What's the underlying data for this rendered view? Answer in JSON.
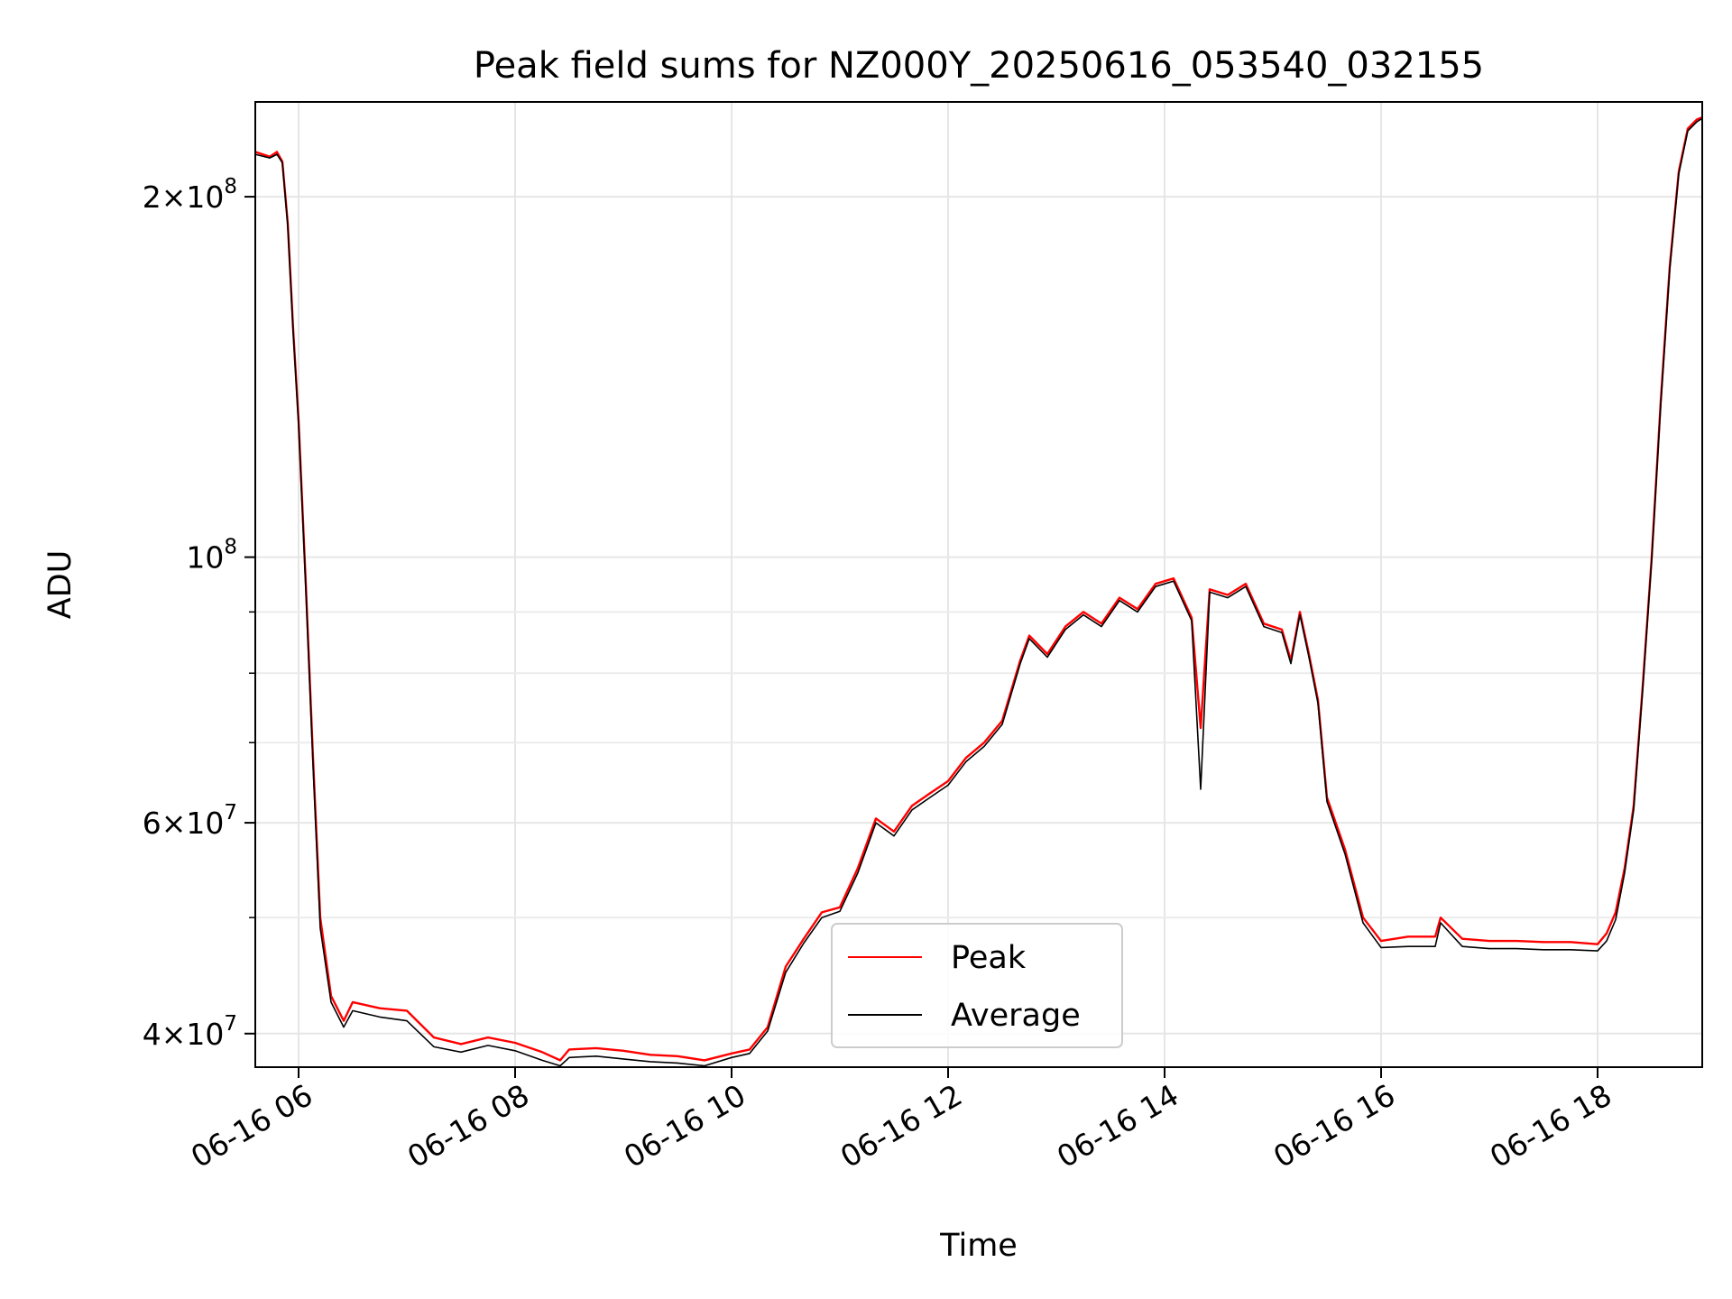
{
  "chart_data": {
    "type": "line",
    "title": "Peak field sums for NZ000Y_20250616_053540_032155",
    "xlabel": "Time",
    "ylabel": "ADU",
    "y_scale": "log",
    "ylim": [
      37500000,
      240000000
    ],
    "xlim": [
      "2025-06-16 05:36",
      "2025-06-16 18:58"
    ],
    "grid": true,
    "legend_position": "lower-center",
    "x_ticks": [
      {
        "value": "2025-06-16 06:00",
        "label": "06-16 06"
      },
      {
        "value": "2025-06-16 08:00",
        "label": "06-16 08"
      },
      {
        "value": "2025-06-16 10:00",
        "label": "06-16 10"
      },
      {
        "value": "2025-06-16 12:00",
        "label": "06-16 12"
      },
      {
        "value": "2025-06-16 14:00",
        "label": "06-16 14"
      },
      {
        "value": "2025-06-16 16:00",
        "label": "06-16 16"
      },
      {
        "value": "2025-06-16 18:00",
        "label": "06-16 18"
      }
    ],
    "y_ticks": [
      {
        "value": 40000000,
        "mantissa": "4",
        "exponent": "7"
      },
      {
        "value": 60000000,
        "mantissa": "6",
        "exponent": "7"
      },
      {
        "value": 100000000,
        "mantissa": "",
        "exponent": "8"
      },
      {
        "value": 200000000,
        "mantissa": "2",
        "exponent": "8"
      }
    ],
    "y_minor_ticks": [
      50000000,
      70000000,
      80000000,
      90000000
    ],
    "series": [
      {
        "name": "Peak",
        "color": "#ff0000",
        "x": [
          "2025-06-16 05:36",
          "2025-06-16 05:44",
          "2025-06-16 05:48",
          "2025-06-16 05:51",
          "2025-06-16 05:54",
          "2025-06-16 05:57",
          "2025-06-16 06:00",
          "2025-06-16 06:04",
          "2025-06-16 06:08",
          "2025-06-16 06:12",
          "2025-06-16 06:18",
          "2025-06-16 06:25",
          "2025-06-16 06:30",
          "2025-06-16 06:45",
          "2025-06-16 07:00",
          "2025-06-16 07:15",
          "2025-06-16 07:30",
          "2025-06-16 07:45",
          "2025-06-16 08:00",
          "2025-06-16 08:15",
          "2025-06-16 08:25",
          "2025-06-16 08:30",
          "2025-06-16 08:45",
          "2025-06-16 09:00",
          "2025-06-16 09:15",
          "2025-06-16 09:30",
          "2025-06-16 09:45",
          "2025-06-16 10:00",
          "2025-06-16 10:10",
          "2025-06-16 10:20",
          "2025-06-16 10:30",
          "2025-06-16 10:40",
          "2025-06-16 10:50",
          "2025-06-16 11:00",
          "2025-06-16 11:10",
          "2025-06-16 11:20",
          "2025-06-16 11:30",
          "2025-06-16 11:40",
          "2025-06-16 11:50",
          "2025-06-16 12:00",
          "2025-06-16 12:10",
          "2025-06-16 12:20",
          "2025-06-16 12:30",
          "2025-06-16 12:40",
          "2025-06-16 12:45",
          "2025-06-16 12:55",
          "2025-06-16 13:05",
          "2025-06-16 13:15",
          "2025-06-16 13:25",
          "2025-06-16 13:35",
          "2025-06-16 13:45",
          "2025-06-16 13:55",
          "2025-06-16 14:05",
          "2025-06-16 14:15",
          "2025-06-16 14:20",
          "2025-06-16 14:25",
          "2025-06-16 14:35",
          "2025-06-16 14:45",
          "2025-06-16 14:55",
          "2025-06-16 15:05",
          "2025-06-16 15:10",
          "2025-06-16 15:15",
          "2025-06-16 15:20",
          "2025-06-16 15:25",
          "2025-06-16 15:30",
          "2025-06-16 15:40",
          "2025-06-16 15:50",
          "2025-06-16 16:00",
          "2025-06-16 16:15",
          "2025-06-16 16:30",
          "2025-06-16 16:33",
          "2025-06-16 16:45",
          "2025-06-16 17:00",
          "2025-06-16 17:15",
          "2025-06-16 17:30",
          "2025-06-16 17:45",
          "2025-06-16 18:00",
          "2025-06-16 18:05",
          "2025-06-16 18:10",
          "2025-06-16 18:15",
          "2025-06-16 18:20",
          "2025-06-16 18:25",
          "2025-06-16 18:30",
          "2025-06-16 18:35",
          "2025-06-16 18:40",
          "2025-06-16 18:45",
          "2025-06-16 18:50",
          "2025-06-16 18:55",
          "2025-06-16 18:58"
        ],
        "y": [
          218000000,
          216000000,
          218000000,
          214000000,
          190000000,
          155000000,
          130000000,
          95000000,
          68000000,
          50000000,
          43000000,
          41000000,
          42500000,
          42000000,
          41800000,
          39700000,
          39200000,
          39700000,
          39300000,
          38600000,
          38000000,
          38800000,
          38900000,
          38700000,
          38400000,
          38300000,
          38000000,
          38500000,
          38800000,
          40500000,
          45500000,
          48000000,
          50500000,
          51000000,
          55000000,
          60500000,
          59000000,
          62000000,
          63500000,
          65000000,
          68000000,
          70000000,
          73000000,
          82000000,
          86000000,
          83000000,
          87500000,
          90000000,
          88000000,
          92500000,
          90500000,
          95000000,
          96000000,
          89000000,
          72000000,
          94000000,
          93000000,
          95000000,
          88000000,
          87000000,
          82000000,
          90000000,
          83000000,
          76000000,
          63000000,
          57000000,
          50000000,
          47800000,
          48200000,
          48200000,
          50000000,
          48000000,
          47800000,
          47800000,
          47700000,
          47700000,
          47500000,
          48500000,
          50500000,
          55000000,
          62000000,
          78000000,
          100000000,
          135000000,
          175000000,
          210000000,
          228000000,
          232000000,
          233000000
        ]
      },
      {
        "name": "Average",
        "color": "#000000",
        "x": [
          "2025-06-16 05:36",
          "2025-06-16 05:44",
          "2025-06-16 05:48",
          "2025-06-16 05:51",
          "2025-06-16 05:54",
          "2025-06-16 05:57",
          "2025-06-16 06:00",
          "2025-06-16 06:04",
          "2025-06-16 06:08",
          "2025-06-16 06:12",
          "2025-06-16 06:18",
          "2025-06-16 06:25",
          "2025-06-16 06:30",
          "2025-06-16 06:45",
          "2025-06-16 07:00",
          "2025-06-16 07:15",
          "2025-06-16 07:30",
          "2025-06-16 07:45",
          "2025-06-16 08:00",
          "2025-06-16 08:15",
          "2025-06-16 08:25",
          "2025-06-16 08:30",
          "2025-06-16 08:45",
          "2025-06-16 09:00",
          "2025-06-16 09:15",
          "2025-06-16 09:30",
          "2025-06-16 09:45",
          "2025-06-16 10:00",
          "2025-06-16 10:10",
          "2025-06-16 10:20",
          "2025-06-16 10:30",
          "2025-06-16 10:40",
          "2025-06-16 10:50",
          "2025-06-16 11:00",
          "2025-06-16 11:10",
          "2025-06-16 11:20",
          "2025-06-16 11:30",
          "2025-06-16 11:40",
          "2025-06-16 11:50",
          "2025-06-16 12:00",
          "2025-06-16 12:10",
          "2025-06-16 12:20",
          "2025-06-16 12:30",
          "2025-06-16 12:40",
          "2025-06-16 12:45",
          "2025-06-16 12:55",
          "2025-06-16 13:05",
          "2025-06-16 13:15",
          "2025-06-16 13:25",
          "2025-06-16 13:35",
          "2025-06-16 13:45",
          "2025-06-16 13:55",
          "2025-06-16 14:05",
          "2025-06-16 14:15",
          "2025-06-16 14:20",
          "2025-06-16 14:25",
          "2025-06-16 14:35",
          "2025-06-16 14:45",
          "2025-06-16 14:55",
          "2025-06-16 15:05",
          "2025-06-16 15:10",
          "2025-06-16 15:15",
          "2025-06-16 15:20",
          "2025-06-16 15:25",
          "2025-06-16 15:30",
          "2025-06-16 15:40",
          "2025-06-16 15:50",
          "2025-06-16 16:00",
          "2025-06-16 16:15",
          "2025-06-16 16:30",
          "2025-06-16 16:33",
          "2025-06-16 16:45",
          "2025-06-16 17:00",
          "2025-06-16 17:15",
          "2025-06-16 17:30",
          "2025-06-16 17:45",
          "2025-06-16 18:00",
          "2025-06-16 18:05",
          "2025-06-16 18:10",
          "2025-06-16 18:15",
          "2025-06-16 18:20",
          "2025-06-16 18:25",
          "2025-06-16 18:30",
          "2025-06-16 18:35",
          "2025-06-16 18:40",
          "2025-06-16 18:45",
          "2025-06-16 18:50",
          "2025-06-16 18:55",
          "2025-06-16 18:58"
        ],
        "y": [
          217000000,
          215500000,
          217000000,
          213500000,
          189000000,
          154000000,
          129000000,
          94000000,
          67000000,
          49000000,
          42500000,
          40500000,
          41800000,
          41300000,
          41000000,
          39000000,
          38600000,
          39100000,
          38700000,
          38000000,
          37600000,
          38200000,
          38300000,
          38100000,
          37900000,
          37800000,
          37600000,
          38200000,
          38500000,
          40200000,
          45000000,
          47600000,
          50000000,
          50600000,
          54500000,
          60000000,
          58500000,
          61500000,
          63000000,
          64500000,
          67500000,
          69500000,
          72500000,
          81500000,
          85500000,
          82500000,
          87000000,
          89500000,
          87500000,
          92000000,
          90000000,
          94500000,
          95500000,
          88500000,
          64000000,
          93500000,
          92500000,
          94500000,
          87500000,
          86500000,
          81500000,
          89500000,
          82500000,
          75500000,
          62500000,
          56500000,
          49500000,
          47200000,
          47300000,
          47300000,
          49500000,
          47300000,
          47100000,
          47100000,
          47000000,
          47000000,
          46900000,
          47800000,
          49800000,
          54500000,
          61500000,
          77500000,
          99500000,
          134000000,
          174000000,
          209000000,
          227000000,
          231000000,
          232500000
        ]
      }
    ]
  }
}
